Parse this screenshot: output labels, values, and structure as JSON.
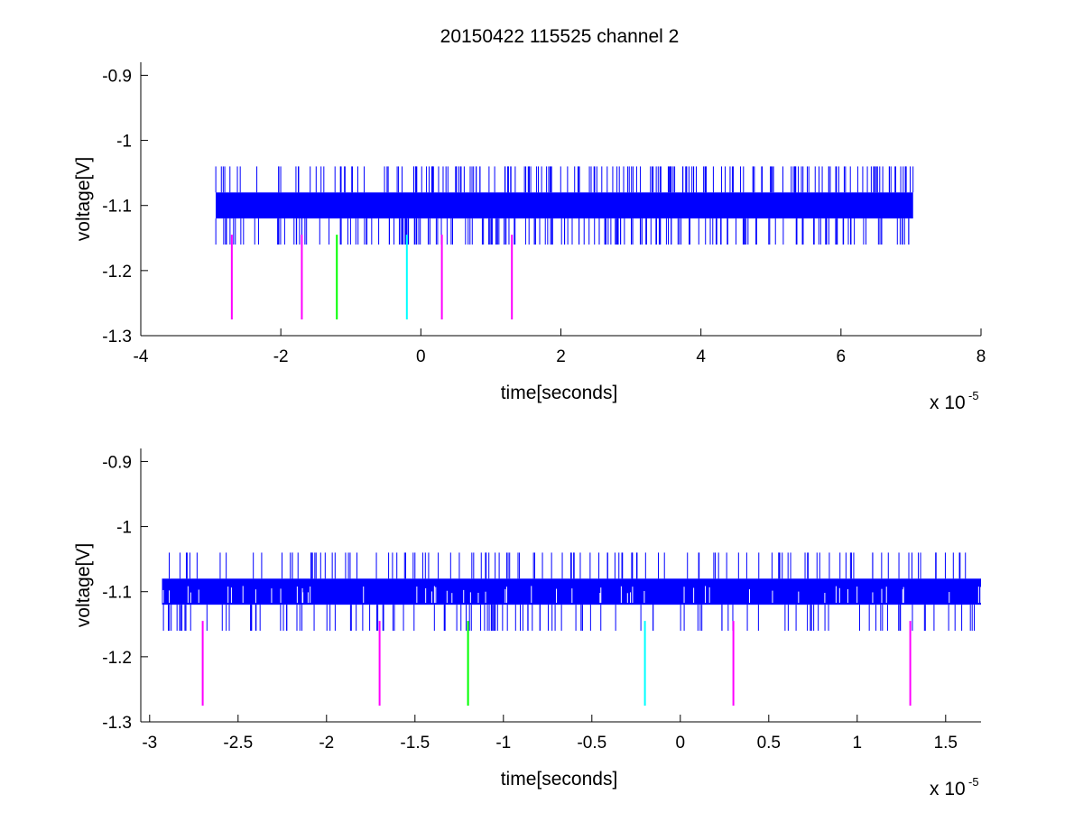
{
  "figure": {
    "title": "20150422 115525 channel 2"
  },
  "colors": {
    "trace": "#0000ff",
    "marker_magenta": "#ff00ff",
    "marker_green": "#00ff00",
    "marker_cyan": "#00ffff",
    "axes": "#000000"
  },
  "chart_data": [
    {
      "type": "line",
      "title": "20150422 115525 channel 2",
      "xlabel": "time[seconds]",
      "ylabel": "voltage[V]",
      "x_multiplier_label": "x 10",
      "x_multiplier_exponent": "-5",
      "xlim": [
        -4,
        8
      ],
      "ylim": [
        -1.3,
        -0.88
      ],
      "xticks": [
        -4,
        -2,
        0,
        2,
        4,
        6,
        8
      ],
      "xtick_labels": [
        "-4",
        "-2",
        "0",
        "2",
        "4",
        "6",
        "8"
      ],
      "yticks": [
        -1.3,
        -1.2,
        -1.1,
        -1.0,
        -0.9
      ],
      "ytick_labels": [
        "-1.3",
        "-1.2",
        "-1.1",
        "-1",
        "-0.9"
      ],
      "grid": false,
      "series": [
        {
          "color": "#0000ff",
          "x_range": [
            -2.93,
            7.03
          ],
          "band": [
            -1.12,
            -1.08
          ],
          "spike_high": -1.04,
          "spike_low": -1.16,
          "spike_count": 420
        }
      ],
      "markers": [
        {
          "x": -2.7,
          "y_top": -1.145,
          "y_bottom": -1.275,
          "color": "#ff00ff"
        },
        {
          "x": -1.7,
          "y_top": -1.145,
          "y_bottom": -1.275,
          "color": "#ff00ff"
        },
        {
          "x": -1.2,
          "y_top": -1.145,
          "y_bottom": -1.275,
          "color": "#00ff00"
        },
        {
          "x": -0.2,
          "y_top": -1.145,
          "y_bottom": -1.275,
          "color": "#00ffff"
        },
        {
          "x": 0.3,
          "y_top": -1.145,
          "y_bottom": -1.275,
          "color": "#ff00ff"
        },
        {
          "x": 1.3,
          "y_top": -1.145,
          "y_bottom": -1.275,
          "color": "#ff00ff"
        }
      ]
    },
    {
      "type": "line",
      "title": "",
      "xlabel": "time[seconds]",
      "ylabel": "voltage[V]",
      "x_multiplier_label": "x 10",
      "x_multiplier_exponent": "-5",
      "xlim": [
        -3.05,
        1.7
      ],
      "ylim": [
        -1.3,
        -0.88
      ],
      "xticks": [
        -3,
        -2.5,
        -2,
        -1.5,
        -1,
        -0.5,
        0,
        0.5,
        1,
        1.5
      ],
      "xtick_labels": [
        "-3",
        "-2.5",
        "-2",
        "-1.5",
        "-1",
        "-0.5",
        "0",
        "0.5",
        "1",
        "1.5"
      ],
      "yticks": [
        -1.3,
        -1.2,
        -1.1,
        -1.0,
        -0.9
      ],
      "ytick_labels": [
        "-1.3",
        "-1.2",
        "-1.1",
        "-1",
        "-0.9"
      ],
      "grid": false,
      "series": [
        {
          "color": "#0000ff",
          "x_range": [
            -2.93,
            1.7
          ],
          "band": [
            -1.12,
            -1.08
          ],
          "spike_high": -1.04,
          "spike_low": -1.16,
          "spike_count": 260
        }
      ],
      "markers": [
        {
          "x": -2.7,
          "y_top": -1.145,
          "y_bottom": -1.275,
          "color": "#ff00ff"
        },
        {
          "x": -1.7,
          "y_top": -1.145,
          "y_bottom": -1.275,
          "color": "#ff00ff"
        },
        {
          "x": -1.2,
          "y_top": -1.145,
          "y_bottom": -1.275,
          "color": "#00ff00"
        },
        {
          "x": -0.2,
          "y_top": -1.145,
          "y_bottom": -1.275,
          "color": "#00ffff"
        },
        {
          "x": 0.3,
          "y_top": -1.145,
          "y_bottom": -1.275,
          "color": "#ff00ff"
        },
        {
          "x": 1.3,
          "y_top": -1.145,
          "y_bottom": -1.275,
          "color": "#ff00ff"
        }
      ]
    }
  ]
}
